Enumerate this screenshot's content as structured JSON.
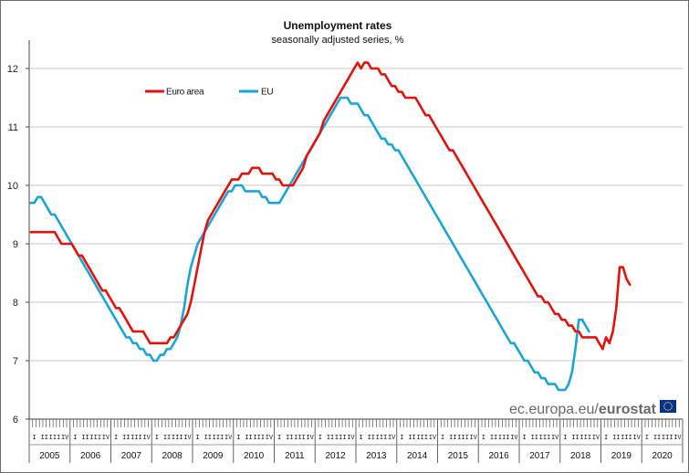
{
  "chart_data": {
    "type": "line",
    "title": "Unemployment rates",
    "subtitle": "seasonally adjusted series, %",
    "ylim": [
      6,
      12.4
    ],
    "yticks": [
      6,
      7,
      8,
      9,
      10,
      11,
      12
    ],
    "grid": "horizontal",
    "legend_position": "top-left",
    "years": [
      "2005",
      "2006",
      "2007",
      "2008",
      "2009",
      "2010",
      "2011",
      "2012",
      "2013",
      "2014",
      "2015",
      "2016",
      "2017",
      "2018",
      "2019",
      "2020"
    ],
    "quarters": [
      "I",
      "II",
      "III",
      "IV"
    ],
    "x_start": "2005-01",
    "x_end": "2020-09",
    "series": [
      {
        "name": "Euro area",
        "color": "#e3120b",
        "values": [
          9.2,
          9.2,
          9.2,
          9.2,
          9.2,
          9.2,
          9.2,
          9.2,
          9.1,
          9.0,
          9.0,
          9.0,
          9.0,
          8.9,
          8.8,
          8.8,
          8.7,
          8.6,
          8.5,
          8.4,
          8.3,
          8.2,
          8.2,
          8.1,
          8.0,
          7.9,
          7.9,
          7.8,
          7.7,
          7.6,
          7.5,
          7.5,
          7.5,
          7.5,
          7.4,
          7.3,
          7.3,
          7.3,
          7.3,
          7.3,
          7.3,
          7.4,
          7.4,
          7.5,
          7.6,
          7.7,
          7.8,
          8.0,
          8.3,
          8.6,
          8.9,
          9.2,
          9.4,
          9.5,
          9.6,
          9.7,
          9.8,
          9.9,
          10.0,
          10.1,
          10.1,
          10.1,
          10.2,
          10.2,
          10.2,
          10.3,
          10.3,
          10.3,
          10.2,
          10.2,
          10.2,
          10.2,
          10.1,
          10.1,
          10.0,
          10.0,
          10.0,
          10.0,
          10.1,
          10.2,
          10.3,
          10.5,
          10.6,
          10.7,
          10.8,
          10.9,
          11.1,
          11.2,
          11.3,
          11.4,
          11.5,
          11.6,
          11.7,
          11.8,
          11.9,
          12.0,
          12.1,
          12.0,
          12.1,
          12.1,
          12.0,
          12.0,
          12.0,
          11.9,
          11.9,
          11.8,
          11.7,
          11.7,
          11.6,
          11.6,
          11.5,
          11.5,
          11.5,
          11.5,
          11.4,
          11.3,
          11.2,
          11.2,
          11.1,
          11.0,
          10.9,
          10.8,
          10.7,
          10.6,
          10.6,
          10.5,
          10.4,
          10.3,
          10.2,
          10.1,
          10.0,
          9.9,
          9.8,
          9.7,
          9.6,
          9.5,
          9.4,
          9.3,
          9.2,
          9.1,
          9.0,
          8.9,
          8.8,
          8.7,
          8.6,
          8.5,
          8.4,
          8.3,
          8.2,
          8.1,
          8.1,
          8.0,
          8.0,
          7.9,
          7.8,
          7.8,
          7.7,
          7.7,
          7.6,
          7.6,
          7.5,
          7.5,
          7.4,
          7.4,
          7.4,
          7.4,
          7.4,
          7.3,
          7.2,
          7.4,
          7.3,
          7.5,
          7.9,
          8.6,
          8.6,
          8.4,
          8.3
        ]
      },
      {
        "name": "EU",
        "color": "#1aa5d8",
        "values": [
          9.7,
          9.7,
          9.8,
          9.8,
          9.7,
          9.6,
          9.5,
          9.5,
          9.4,
          9.3,
          9.2,
          9.1,
          9.0,
          8.9,
          8.8,
          8.7,
          8.6,
          8.5,
          8.4,
          8.3,
          8.2,
          8.1,
          8.0,
          7.9,
          7.8,
          7.7,
          7.6,
          7.5,
          7.4,
          7.4,
          7.3,
          7.3,
          7.2,
          7.2,
          7.1,
          7.1,
          7.0,
          7.0,
          7.1,
          7.1,
          7.2,
          7.2,
          7.3,
          7.4,
          7.6,
          7.9,
          8.3,
          8.6,
          8.8,
          9.0,
          9.1,
          9.2,
          9.3,
          9.4,
          9.5,
          9.6,
          9.7,
          9.8,
          9.9,
          9.9,
          10.0,
          10.0,
          10.0,
          9.9,
          9.9,
          9.9,
          9.9,
          9.9,
          9.8,
          9.8,
          9.7,
          9.7,
          9.7,
          9.7,
          9.8,
          9.9,
          10.0,
          10.1,
          10.2,
          10.3,
          10.4,
          10.5,
          10.6,
          10.7,
          10.8,
          10.9,
          11.0,
          11.1,
          11.2,
          11.3,
          11.4,
          11.5,
          11.5,
          11.5,
          11.4,
          11.4,
          11.4,
          11.3,
          11.2,
          11.2,
          11.1,
          11.0,
          10.9,
          10.8,
          10.8,
          10.7,
          10.7,
          10.6,
          10.6,
          10.5,
          10.4,
          10.3,
          10.2,
          10.1,
          10.0,
          9.9,
          9.8,
          9.7,
          9.6,
          9.5,
          9.4,
          9.3,
          9.2,
          9.1,
          9.0,
          8.9,
          8.8,
          8.7,
          8.6,
          8.5,
          8.4,
          8.3,
          8.2,
          8.1,
          8.0,
          7.9,
          7.8,
          7.7,
          7.6,
          7.5,
          7.4,
          7.3,
          7.3,
          7.2,
          7.1,
          7.0,
          7.0,
          6.9,
          6.8,
          6.8,
          6.7,
          6.7,
          6.6,
          6.6,
          6.6,
          6.5,
          6.5,
          6.5,
          6.6,
          6.8,
          7.2,
          7.7,
          7.7,
          7.6,
          7.5
        ]
      }
    ]
  },
  "watermark": {
    "url_text": "ec.europa.eu/",
    "brand_text": "eurostat",
    "flag_color": "#003399",
    "star_color": "#ffcc00"
  }
}
